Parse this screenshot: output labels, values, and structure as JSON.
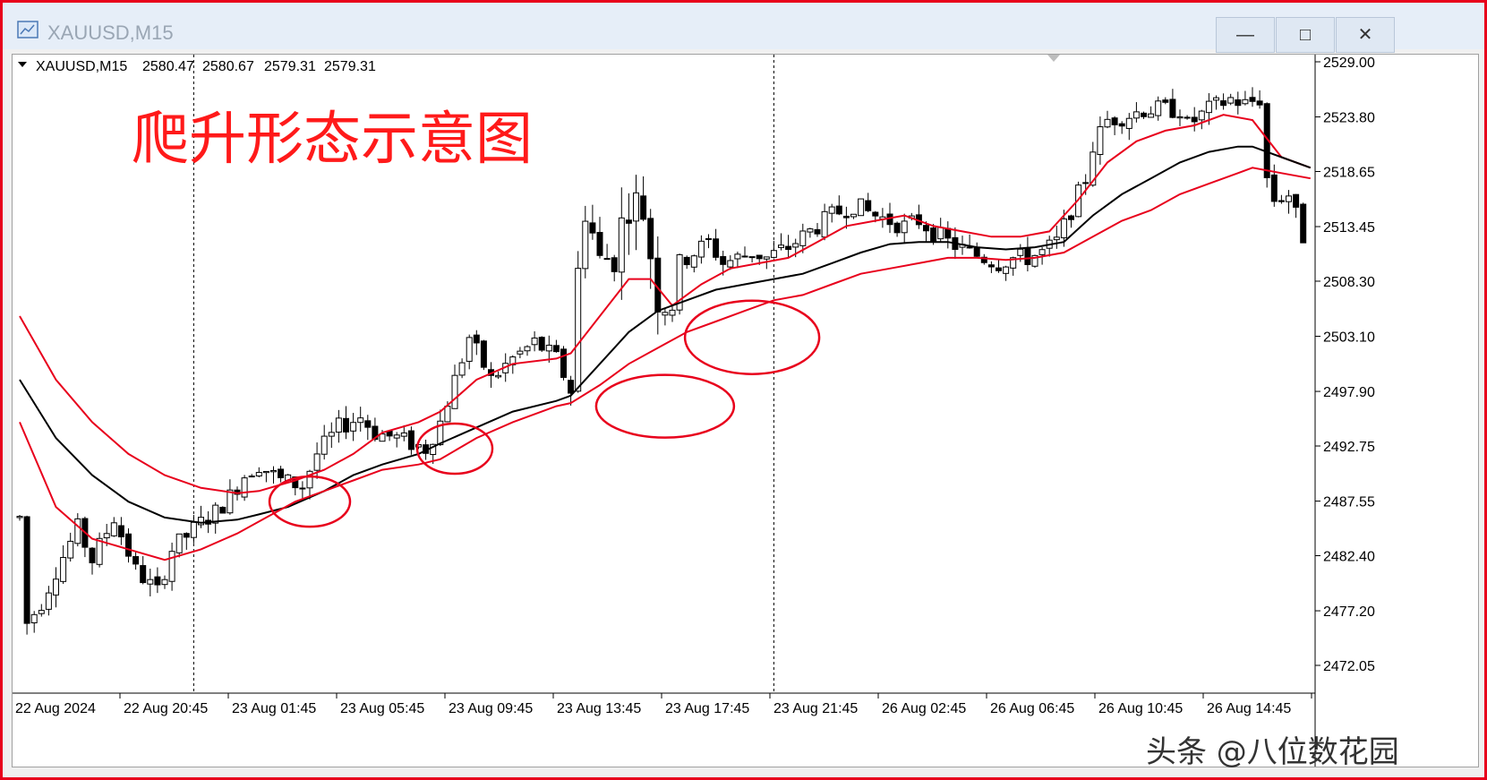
{
  "window": {
    "title": "XAUUSD,M15",
    "buttons": {
      "minimize": "—",
      "maximize": "□",
      "close": "✕"
    }
  },
  "chart_header": {
    "dropdown_icon": "triangle-down-icon",
    "symbol": "XAUUSD,M15",
    "open": "2580.47",
    "high": "2580.67",
    "low": "2579.31",
    "close": "2579.31"
  },
  "annotation": {
    "title": "爬升形态示意图",
    "color": "#ff1a1a"
  },
  "watermark": "头条 @八位数花园",
  "colors": {
    "bands": "#e8001c",
    "middle_line": "#000000",
    "circles": "#e8001c",
    "frame": "#e8001c"
  },
  "chart_data": {
    "type": "candlestick",
    "ylim": [
      2469.5,
      2531.5
    ],
    "y_ticks": [
      "2529.00",
      "2523.80",
      "2518.65",
      "2513.45",
      "2508.30",
      "2503.10",
      "2497.90",
      "2492.75",
      "2487.55",
      "2482.40",
      "2477.20",
      "2472.05"
    ],
    "x_ticks": [
      "22 Aug 2024",
      "22 Aug 20:45",
      "23 Aug 01:45",
      "23 Aug 05:45",
      "23 Aug 09:45",
      "23 Aug 13:45",
      "23 Aug 17:45",
      "23 Aug 21:45",
      "26 Aug 02:45",
      "26 Aug 06:45",
      "26 Aug 10:45",
      "26 Aug 14:45"
    ],
    "bar_count": 160,
    "close_path": [
      [
        0,
        2486
      ],
      [
        1,
        2476
      ],
      [
        3,
        2478
      ],
      [
        5,
        2481
      ],
      [
        8,
        2485
      ],
      [
        10,
        2482
      ],
      [
        13,
        2486
      ],
      [
        16,
        2481
      ],
      [
        19,
        2479
      ],
      [
        21,
        2483
      ],
      [
        25,
        2485.5
      ],
      [
        27,
        2486.5
      ],
      [
        29,
        2488
      ],
      [
        31,
        2490
      ],
      [
        33,
        2491
      ],
      [
        36,
        2489.5
      ],
      [
        39,
        2489
      ],
      [
        41,
        2492
      ],
      [
        44,
        2494.5
      ],
      [
        47,
        2495.5
      ],
      [
        49,
        2494
      ],
      [
        52,
        2493.5
      ],
      [
        54,
        2493
      ],
      [
        56,
        2492.5
      ],
      [
        58,
        2495
      ],
      [
        60,
        2499
      ],
      [
        62,
        2503
      ],
      [
        65,
        2499
      ],
      [
        68,
        2501
      ],
      [
        71,
        2502.5
      ],
      [
        74,
        2501
      ],
      [
        76,
        2498
      ],
      [
        77,
        2509
      ],
      [
        78,
        2515.5
      ],
      [
        80,
        2510
      ],
      [
        82,
        2511
      ],
      [
        84,
        2516
      ],
      [
        86,
        2515
      ],
      [
        88,
        2507
      ],
      [
        90,
        2506
      ],
      [
        91,
        2510
      ],
      [
        93,
        2511
      ],
      [
        95,
        2512
      ],
      [
        97,
        2510
      ],
      [
        99,
        2510.5
      ],
      [
        101,
        2511
      ],
      [
        103,
        2510.5
      ],
      [
        106,
        2511.5
      ],
      [
        108,
        2512.5
      ],
      [
        110,
        2513.5
      ],
      [
        112,
        2514.5
      ],
      [
        115,
        2515.5
      ],
      [
        118,
        2514.5
      ],
      [
        120,
        2514
      ],
      [
        122,
        2513.5
      ],
      [
        124,
        2514
      ],
      [
        126,
        2513
      ],
      [
        128,
        2512
      ],
      [
        131,
        2511
      ],
      [
        133,
        2510.5
      ],
      [
        135,
        2510
      ],
      [
        137,
        2510.5
      ],
      [
        139,
        2510.5
      ],
      [
        141,
        2511
      ],
      [
        143,
        2512
      ],
      [
        145,
        2515
      ],
      [
        147,
        2518
      ],
      [
        148,
        2521
      ],
      [
        150,
        2523.5
      ],
      [
        153,
        2524
      ],
      [
        155,
        2524.5
      ],
      [
        158,
        2524.5
      ],
      [
        160,
        2524.5
      ],
      [
        161,
        2523
      ],
      [
        164,
        2524.5
      ],
      [
        167,
        2525.5
      ],
      [
        169,
        2525
      ],
      [
        171,
        2525.5
      ],
      [
        172,
        2518
      ],
      [
        173,
        2516
      ],
      [
        175,
        2516.5
      ],
      [
        177,
        2512.5
      ],
      [
        178,
        2515
      ]
    ],
    "series": [
      {
        "name": "",
        "color": "#e8001c",
        "values": [
          [
            0,
            2505
          ],
          [
            5,
            2499
          ],
          [
            10,
            2495
          ],
          [
            15,
            2492
          ],
          [
            20,
            2490
          ],
          [
            25,
            2488.8
          ],
          [
            30,
            2488.3
          ],
          [
            33,
            2488.5
          ],
          [
            38,
            2489.5
          ],
          [
            42,
            2490.5
          ],
          [
            46,
            2492
          ],
          [
            50,
            2494
          ],
          [
            55,
            2495
          ],
          [
            58,
            2496
          ],
          [
            63,
            2499
          ],
          [
            68,
            2500.5
          ],
          [
            74,
            2501
          ],
          [
            76,
            2501.5
          ],
          [
            80,
            2505
          ],
          [
            84,
            2508.5
          ],
          [
            87,
            2508.5
          ],
          [
            90,
            2506
          ],
          [
            94,
            2508
          ],
          [
            98,
            2509.5
          ],
          [
            102,
            2510
          ],
          [
            106,
            2510.5
          ],
          [
            110,
            2512
          ],
          [
            114,
            2513.5
          ],
          [
            118,
            2514
          ],
          [
            122,
            2514.5
          ],
          [
            126,
            2513.5
          ],
          [
            130,
            2513
          ],
          [
            134,
            2512.5
          ],
          [
            138,
            2512.5
          ],
          [
            142,
            2513
          ],
          [
            146,
            2516
          ],
          [
            150,
            2519.5
          ],
          [
            154,
            2521.5
          ],
          [
            158,
            2522.5
          ],
          [
            162,
            2523
          ],
          [
            166,
            2524
          ],
          [
            170,
            2523.5
          ],
          [
            174,
            2520
          ],
          [
            178,
            2519
          ]
        ]
      },
      {
        "name": "",
        "color": "#000000",
        "values": [
          [
            0,
            2499
          ],
          [
            5,
            2493.5
          ],
          [
            10,
            2490
          ],
          [
            15,
            2487.5
          ],
          [
            20,
            2486
          ],
          [
            25,
            2485.5
          ],
          [
            30,
            2485.8
          ],
          [
            33,
            2486.3
          ],
          [
            37,
            2487
          ],
          [
            42,
            2488.5
          ],
          [
            46,
            2490
          ],
          [
            50,
            2491
          ],
          [
            55,
            2492
          ],
          [
            58,
            2493
          ],
          [
            63,
            2494.5
          ],
          [
            68,
            2496
          ],
          [
            74,
            2497
          ],
          [
            76,
            2497.5
          ],
          [
            80,
            2500.5
          ],
          [
            84,
            2503.5
          ],
          [
            88,
            2505.5
          ],
          [
            92,
            2506.5
          ],
          [
            96,
            2507.5
          ],
          [
            100,
            2508
          ],
          [
            104,
            2508.5
          ],
          [
            108,
            2509
          ],
          [
            112,
            2510
          ],
          [
            116,
            2511
          ],
          [
            120,
            2511.8
          ],
          [
            124,
            2512
          ],
          [
            128,
            2512
          ],
          [
            132,
            2511.5
          ],
          [
            136,
            2511.3
          ],
          [
            140,
            2511.5
          ],
          [
            144,
            2512
          ],
          [
            148,
            2514.5
          ],
          [
            152,
            2516.5
          ],
          [
            156,
            2518
          ],
          [
            160,
            2519.5
          ],
          [
            164,
            2520.5
          ],
          [
            168,
            2521
          ],
          [
            170,
            2521
          ],
          [
            174,
            2520
          ],
          [
            178,
            2519
          ]
        ]
      },
      {
        "name": "",
        "color": "#e8001c",
        "values": [
          [
            0,
            2495
          ],
          [
            5,
            2487
          ],
          [
            10,
            2484
          ],
          [
            15,
            2483
          ],
          [
            20,
            2482
          ],
          [
            25,
            2483
          ],
          [
            30,
            2484.5
          ],
          [
            34,
            2486
          ],
          [
            38,
            2487.5
          ],
          [
            42,
            2488.5
          ],
          [
            46,
            2489.5
          ],
          [
            50,
            2490.5
          ],
          [
            55,
            2491
          ],
          [
            58,
            2491.5
          ],
          [
            63,
            2493.5
          ],
          [
            68,
            2495
          ],
          [
            74,
            2496.5
          ],
          [
            76,
            2496.8
          ],
          [
            80,
            2498.5
          ],
          [
            84,
            2500.5
          ],
          [
            88,
            2502
          ],
          [
            92,
            2503.5
          ],
          [
            96,
            2504.5
          ],
          [
            100,
            2505.5
          ],
          [
            104,
            2506.5
          ],
          [
            108,
            2507
          ],
          [
            112,
            2508
          ],
          [
            116,
            2509
          ],
          [
            120,
            2509.5
          ],
          [
            124,
            2510
          ],
          [
            128,
            2510.5
          ],
          [
            132,
            2510.5
          ],
          [
            136,
            2510.3
          ],
          [
            140,
            2510.5
          ],
          [
            144,
            2511
          ],
          [
            148,
            2512.5
          ],
          [
            152,
            2514
          ],
          [
            156,
            2515
          ],
          [
            160,
            2516.5
          ],
          [
            164,
            2517.5
          ],
          [
            168,
            2518.5
          ],
          [
            170,
            2519
          ],
          [
            174,
            2518.5
          ],
          [
            178,
            2518
          ]
        ]
      }
    ],
    "vertical_dashed_at_bars": [
      24,
      104
    ]
  }
}
